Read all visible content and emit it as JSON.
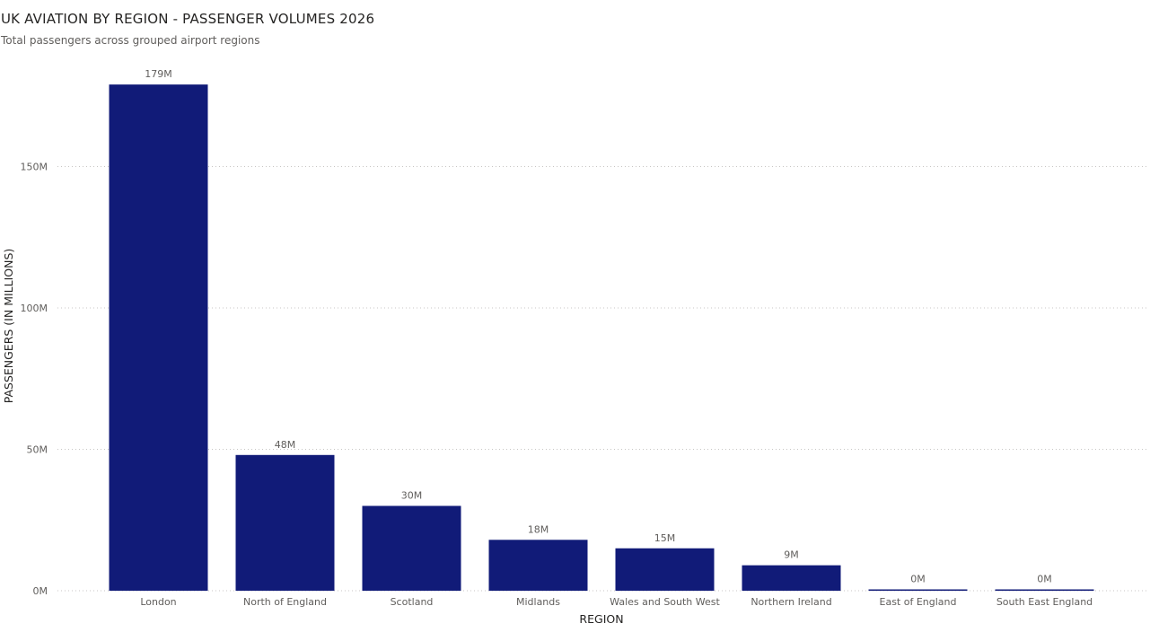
{
  "chart_data": {
    "type": "bar",
    "title": "UK AVIATION BY REGION - PASSENGER VOLUMES 2026",
    "subtitle": "Total passengers across grouped airport regions",
    "xlabel": "REGION",
    "ylabel": "PASSENGERS (IN MILLIONS)",
    "categories": [
      "London",
      "North of England",
      "Scotland",
      "Midlands",
      "Wales and South West",
      "Northern Ireland",
      "East of England",
      "South East England"
    ],
    "values": [
      179,
      48,
      30,
      18,
      15,
      9,
      0.4,
      0.3
    ],
    "data_labels": [
      "179M",
      "48M",
      "30M",
      "18M",
      "15M",
      "9M",
      "0M",
      "0M"
    ],
    "ylim": [
      0,
      180
    ],
    "yticks": [
      0,
      50,
      100,
      150
    ],
    "ytick_labels": [
      "0M",
      "50M",
      "100M",
      "150M"
    ],
    "grid": true,
    "legend": "none",
    "bar_color": "#111b78"
  }
}
